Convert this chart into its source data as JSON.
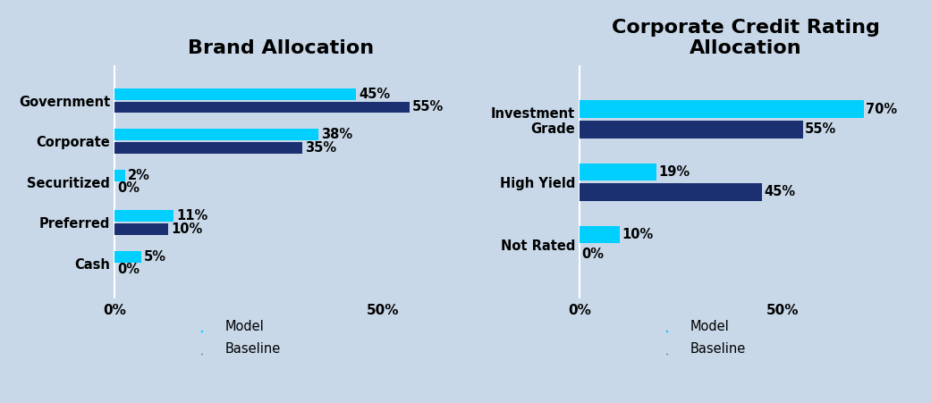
{
  "chart1": {
    "title": "Brand Allocation",
    "categories": [
      "Government",
      "Corporate",
      "Securitized",
      "Preferred",
      "Cash"
    ],
    "model_values": [
      45,
      38,
      2,
      11,
      5
    ],
    "baseline_values": [
      55,
      35,
      0,
      10,
      0
    ],
    "xlim": [
      0,
      62
    ],
    "xticks": [
      0,
      50
    ],
    "xticklabels": [
      "0%",
      "50%"
    ]
  },
  "chart2": {
    "title": "Corporate Credit Rating\nAllocation",
    "categories": [
      "Investment\nGrade",
      "High Yield",
      "Not Rated"
    ],
    "model_values": [
      70,
      19,
      10
    ],
    "baseline_values": [
      55,
      45,
      0
    ],
    "xlim": [
      0,
      82
    ],
    "xticks": [
      0,
      50
    ],
    "xticklabels": [
      "0%",
      "50%"
    ]
  },
  "model_color": "#00CFFF",
  "baseline_color": "#1B3070",
  "bar_height": 0.28,
  "bg_color": "#C8D8E8",
  "label_fontsize": 10.5,
  "title_fontsize": 16,
  "tick_fontsize": 11,
  "annotation_fontsize": 10.5
}
